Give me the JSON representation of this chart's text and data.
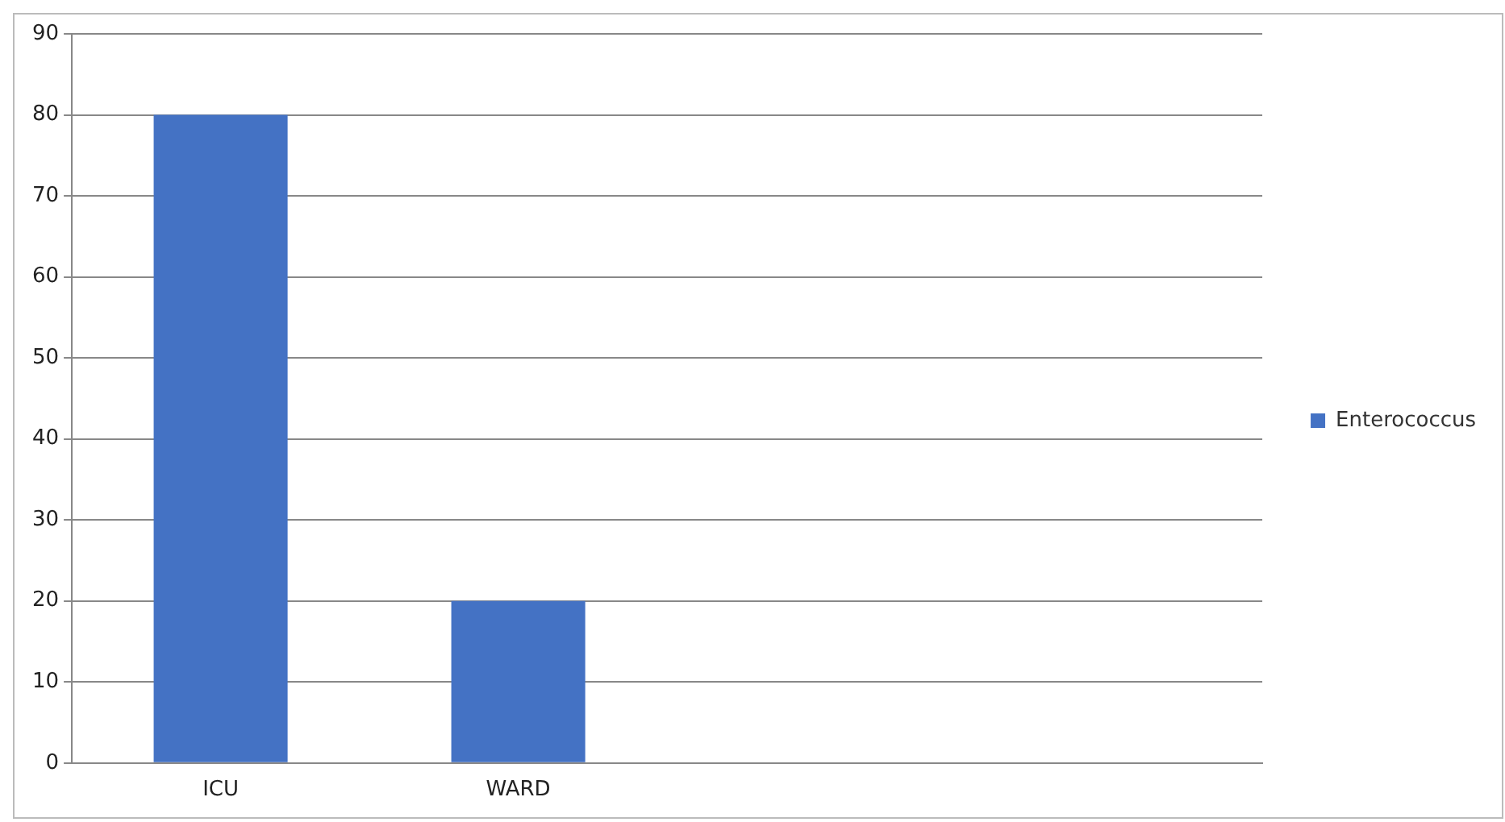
{
  "chart_data": {
    "type": "bar",
    "categories": [
      "ICU",
      "WARD",
      null,
      null
    ],
    "series": [
      {
        "name": "Enterococcus",
        "color": "#4472c4",
        "values": [
          80,
          20,
          null,
          null
        ]
      }
    ],
    "ylim": [
      0,
      90
    ],
    "yticks": [
      0,
      10,
      20,
      30,
      40,
      50,
      60,
      70,
      80,
      90
    ],
    "grid": "y",
    "legend": "right"
  }
}
